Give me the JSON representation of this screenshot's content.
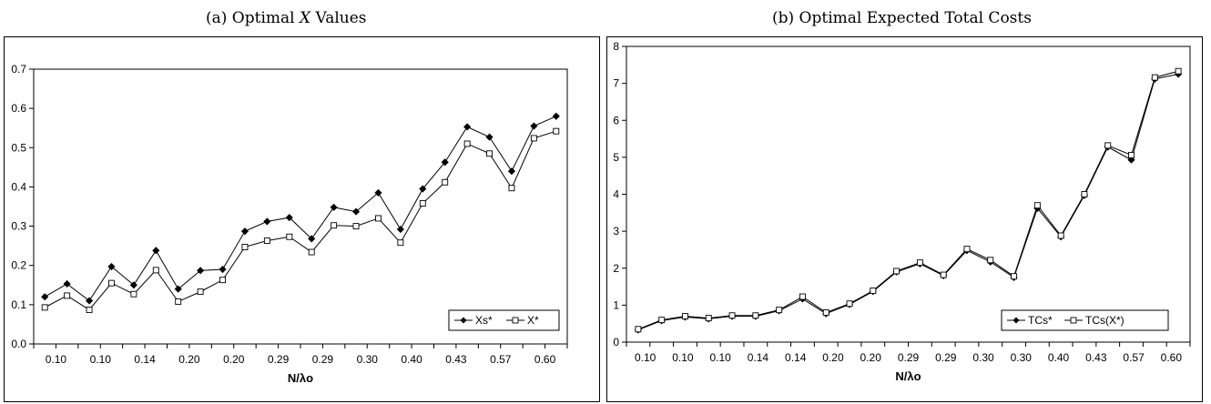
{
  "captions": {
    "a_prefix": "(a) Optimal ",
    "a_var": "X",
    "a_suffix": " Values",
    "b": "(b) Optimal Expected Total Costs"
  },
  "chart_data": [
    {
      "type": "line",
      "xlabel": "N/λo",
      "categories": [
        "0.10",
        "0.10",
        "0.10",
        "0.10",
        "0.14",
        "0.14",
        "0.20",
        "0.20",
        "0.20",
        "0.20",
        "0.29",
        "0.29",
        "0.29",
        "0.29",
        "0.30",
        "0.30",
        "0.40",
        "0.40",
        "0.43",
        "0.43",
        "0.57",
        "0.57",
        "0.60",
        "0.60"
      ],
      "tick_labels": [
        "0.10",
        "0.10",
        "0.14",
        "0.20",
        "0.20",
        "0.29",
        "0.29",
        "0.30",
        "0.40",
        "0.43",
        "0.57",
        "0.60"
      ],
      "ylim": [
        0,
        0.7
      ],
      "yticks": [
        "0.0",
        "0.1",
        "0.2",
        "0.3",
        "0.4",
        "0.5",
        "0.6",
        "0.7"
      ],
      "legend_position": "bottom-right",
      "series": [
        {
          "name": "Xs*",
          "marker": "diamond",
          "values": [
            0.12,
            0.153,
            0.11,
            0.197,
            0.15,
            0.238,
            0.14,
            0.187,
            0.19,
            0.287,
            0.312,
            0.322,
            0.268,
            0.348,
            0.337,
            0.385,
            0.292,
            0.395,
            0.463,
            0.553,
            0.527,
            0.44,
            0.555,
            0.58
          ]
        },
        {
          "name": "X*",
          "marker": "square",
          "values": [
            0.093,
            0.123,
            0.087,
            0.155,
            0.127,
            0.188,
            0.108,
            0.133,
            0.163,
            0.247,
            0.263,
            0.273,
            0.234,
            0.302,
            0.3,
            0.32,
            0.258,
            0.358,
            0.412,
            0.51,
            0.485,
            0.397,
            0.524,
            0.542
          ]
        }
      ]
    },
    {
      "type": "line",
      "xlabel": "N/λo",
      "categories": [
        "0.10",
        "0.10",
        "0.10",
        "0.10",
        "0.14",
        "0.14",
        "0.20",
        "0.20",
        "0.20",
        "0.20",
        "0.29",
        "0.29",
        "0.29",
        "0.29",
        "0.30",
        "0.30",
        "0.40",
        "0.40",
        "0.43",
        "0.43",
        "0.57",
        "0.57",
        "0.60",
        "0.60"
      ],
      "tick_labels": [
        "0.10",
        "0.10",
        "0.10",
        "0.14",
        "0.14",
        "0.20",
        "0.20",
        "0.29",
        "0.29",
        "0.30",
        "0.30",
        "0.40",
        "0.43",
        "0.57",
        "0.60"
      ],
      "ylim": [
        0,
        8
      ],
      "yticks": [
        "0",
        "1",
        "2",
        "3",
        "4",
        "5",
        "6",
        "7",
        "8"
      ],
      "legend_position": "bottom-right",
      "series": [
        {
          "name": "TCs*",
          "marker": "diamond",
          "values": [
            0.33,
            0.58,
            0.68,
            0.63,
            0.7,
            0.7,
            0.85,
            1.17,
            0.77,
            1.02,
            1.37,
            1.9,
            2.12,
            1.8,
            2.48,
            2.17,
            1.75,
            3.62,
            2.85,
            3.97,
            5.28,
            4.93,
            7.12,
            7.25
          ]
        },
        {
          "name": "TCs(X*)",
          "marker": "square",
          "values": [
            0.35,
            0.6,
            0.7,
            0.65,
            0.72,
            0.72,
            0.87,
            1.23,
            0.8,
            1.04,
            1.39,
            1.92,
            2.15,
            1.82,
            2.52,
            2.22,
            1.78,
            3.7,
            2.88,
            4.0,
            5.32,
            5.06,
            7.16,
            7.33
          ]
        }
      ]
    }
  ]
}
